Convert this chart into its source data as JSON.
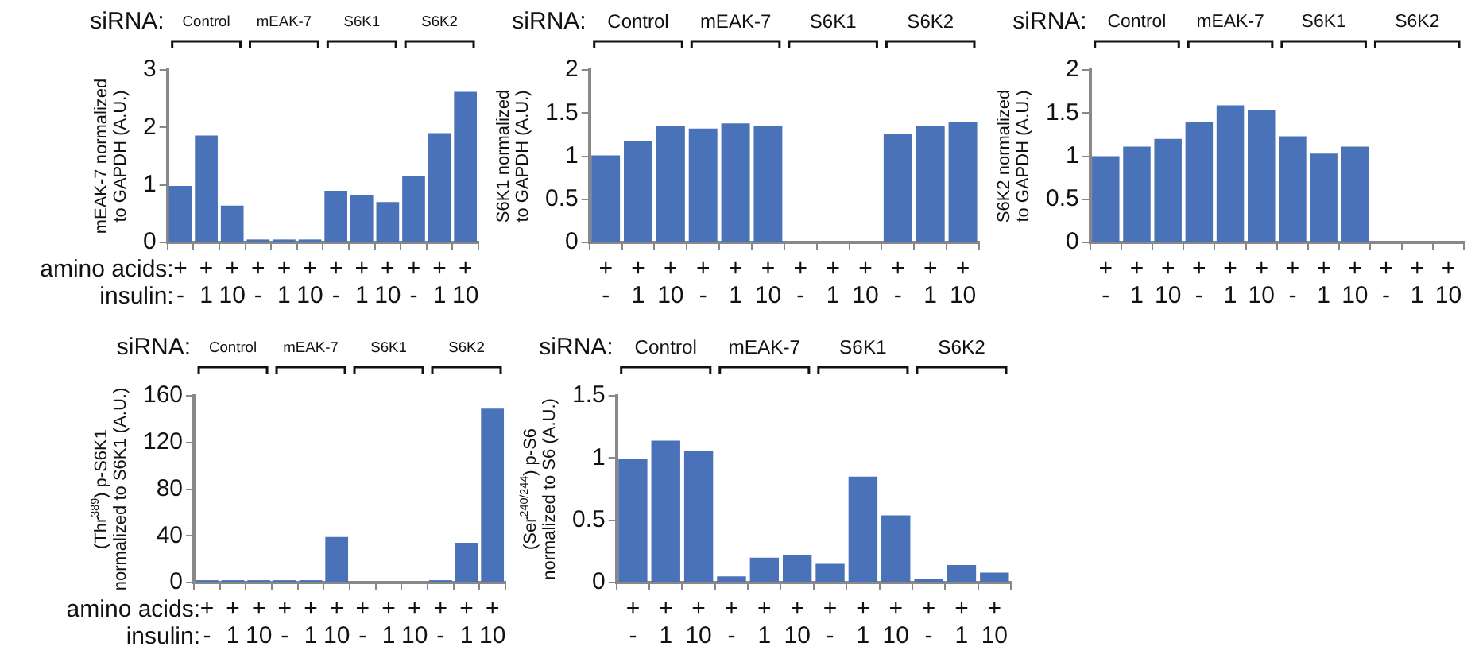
{
  "chart_data": [
    {
      "type": "bar",
      "ylabel": "mEAK-7 normalized\nto GAPDH (A.U.)",
      "categories": [
        "+\n-",
        "+\n1",
        "+\n10",
        "+\n-",
        "+\n1",
        "+\n10",
        "+\n-",
        "+\n1",
        "+\n10",
        "+\n-",
        "+\n1",
        "+\n10"
      ],
      "values": [
        0.98,
        1.86,
        0.64,
        0.05,
        0.05,
        0.05,
        0.9,
        0.82,
        0.7,
        1.15,
        1.9,
        2.62
      ],
      "color": "#4a72b8",
      "ylim": [
        0,
        3
      ],
      "yticks": [
        0,
        1,
        2,
        3
      ],
      "grid": false,
      "annotations": [
        "siRNA:",
        "Control",
        "mEAK-7",
        "S6K1",
        "S6K2",
        "amino acids:",
        "insulin:"
      ]
    },
    {
      "type": "bar",
      "ylabel": "S6K1 normalized\nto GAPDH (A.U.)",
      "categories": [
        "+\n-",
        "+\n1",
        "+\n10",
        "+\n-",
        "+\n1",
        "+\n10",
        "+\n-",
        "+\n1",
        "+\n10",
        "+\n-",
        "+\n1",
        "+\n10"
      ],
      "values": [
        1.01,
        1.18,
        1.35,
        1.32,
        1.38,
        1.35,
        0.01,
        0.01,
        0.01,
        1.26,
        1.35,
        1.4
      ],
      "color": "#4a72b8",
      "ylim": [
        0,
        2
      ],
      "yticks": [
        0,
        0.5,
        1,
        1.5,
        2
      ],
      "grid": false,
      "annotations": [
        "siRNA:",
        "Control",
        "mEAK-7",
        "S6K1",
        "S6K2"
      ]
    },
    {
      "type": "bar",
      "ylabel": "S6K2 normalized\nto GAPDH (A.U.)",
      "categories": [
        "+\n-",
        "+\n1",
        "+\n10",
        "+\n-",
        "+\n1",
        "+\n10",
        "+\n-",
        "+\n1",
        "+\n10",
        "+\n-",
        "+\n1",
        "+\n10"
      ],
      "values": [
        1.0,
        1.11,
        1.2,
        1.4,
        1.59,
        1.54,
        1.23,
        1.03,
        1.11,
        0.01,
        0.01,
        0.01
      ],
      "color": "#4a72b8",
      "ylim": [
        0,
        2
      ],
      "yticks": [
        0,
        0.5,
        1,
        1.5,
        2
      ],
      "grid": false,
      "annotations": [
        "siRNA:",
        "Control",
        "mEAK-7",
        "S6K1",
        "S6K2"
      ]
    },
    {
      "type": "bar",
      "ylabel": "(Thr$^{389}$) p-S6K1\nnormalized to S6K1 (A.U.)",
      "categories": [
        "+\n-",
        "+\n1",
        "+\n10",
        "+\n-",
        "+\n1",
        "+\n10",
        "+\n-",
        "+\n1",
        "+\n10",
        "+\n-",
        "+\n1",
        "+\n10"
      ],
      "values": [
        2,
        2,
        2,
        2,
        2,
        39,
        0,
        0,
        0,
        2,
        34,
        149
      ],
      "color": "#4a72b8",
      "ylim": [
        0,
        160
      ],
      "yticks": [
        0,
        40,
        80,
        120,
        160
      ],
      "grid": false,
      "annotations": [
        "siRNA:",
        "Control",
        "mEAK-7",
        "S6K1",
        "S6K2",
        "amino acids:",
        "insulin:"
      ]
    },
    {
      "type": "bar",
      "ylabel": "(Ser$^{240/244}$) p-S6\nnormalized to S6 (A.U.)",
      "categories": [
        "+\n-",
        "+\n1",
        "+\n10",
        "+\n-",
        "+\n1",
        "+\n10",
        "+\n-",
        "+\n1",
        "+\n10",
        "+\n-",
        "+\n1",
        "+\n10"
      ],
      "values": [
        0.99,
        1.14,
        1.06,
        0.05,
        0.2,
        0.22,
        0.15,
        0.85,
        0.54,
        0.03,
        0.14,
        0.08
      ],
      "color": "#4a72b8",
      "ylim": [
        0,
        1.5
      ],
      "yticks": [
        0,
        0.5,
        1,
        1.5
      ],
      "grid": false,
      "annotations": [
        "siRNA:",
        "Control",
        "mEAK-7",
        "S6K1",
        "S6K2"
      ]
    }
  ]
}
